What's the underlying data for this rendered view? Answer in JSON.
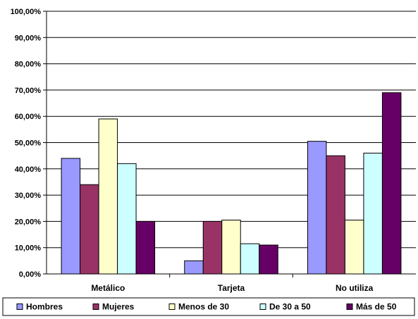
{
  "chart_data": {
    "type": "bar",
    "categories": [
      "Metálico",
      "Tarjeta",
      "No utiliza"
    ],
    "series": [
      {
        "name": "Hombres",
        "color": "#9999ff",
        "values": [
          44.0,
          5.0,
          50.5
        ]
      },
      {
        "name": "Mujeres",
        "color": "#993366",
        "values": [
          34.0,
          20.0,
          45.0
        ]
      },
      {
        "name": "Menos de 30",
        "color": "#ffffcc",
        "values": [
          59.0,
          20.5,
          20.5
        ]
      },
      {
        "name": "De 30 a 50",
        "color": "#ccffff",
        "values": [
          42.0,
          11.5,
          46.0
        ]
      },
      {
        "name": "Más de 50",
        "color": "#660066",
        "values": [
          20.0,
          11.0,
          69.0
        ]
      }
    ],
    "y_ticks": [
      "0,00%",
      "10,00%",
      "20,00%",
      "30,00%",
      "40,00%",
      "50,00%",
      "60,00%",
      "70,00%",
      "80,00%",
      "90,00%",
      "100,00%"
    ],
    "ylim": [
      0,
      100
    ],
    "grid": true,
    "legend_position": "bottom",
    "title": "",
    "xlabel": "",
    "ylabel": ""
  }
}
